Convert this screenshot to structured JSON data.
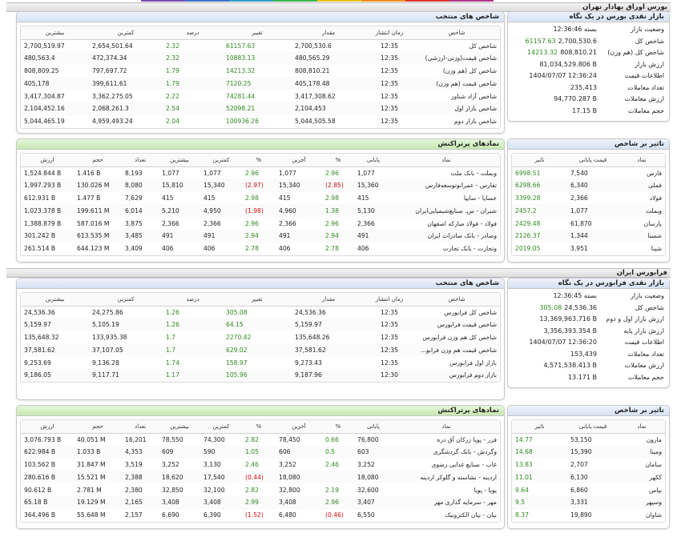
{
  "colors": {
    "positive": "#2e8b1e",
    "negative": "#cc1111",
    "head_blue": "#d6e2f3",
    "head_green": "#c6e8b0"
  },
  "tse": {
    "section_title": "بورس اوراق بهادار تهران",
    "summary": {
      "title": "بازار نقدی بورس در یک نگاه",
      "rows": [
        {
          "label": "وضعیت بازار",
          "value": "بسته 12:36:46",
          "change": ""
        },
        {
          "label": "شاخص کل",
          "value": "2,700,530.6",
          "change": "61157.63"
        },
        {
          "label": "شاخص کل (هم وزن)",
          "value": "808,810.21",
          "change": "14213.32"
        },
        {
          "label": "ارزش بازار",
          "value": "81,034,529.806 B",
          "change": ""
        },
        {
          "label": "اطلاعات قیمت",
          "value": "1404/07/07 12:36:24",
          "change": ""
        },
        {
          "label": "تعداد معاملات",
          "value": "235,413",
          "change": ""
        },
        {
          "label": "ارزش معاملات",
          "value": "94,770.287 B",
          "change": ""
        },
        {
          "label": "حجم معاملات",
          "value": "17.15 B",
          "change": ""
        }
      ]
    },
    "indices": {
      "title": "شاخص های منتخب",
      "headers": [
        "شاخص",
        "زمان انتشار",
        "مقدار",
        "تغییر",
        "درصد",
        "کمترین",
        "بیشترین"
      ],
      "rows": [
        [
          "شاخص کل",
          "12:35",
          "2,700,530.6",
          "61157.63",
          "2.32",
          "2,654,501.64",
          "2,700,519.97"
        ],
        [
          "شاخص قیمت(وزنی-ارزشی)",
          "12:35",
          "480,565.29",
          "10883.13",
          "2.32",
          "472,374.34",
          "480,563.4"
        ],
        [
          "شاخص کل (هم وزن)",
          "12:35",
          "808,810.21",
          "14213.32",
          "1.79",
          "797,697.72",
          "808,809.25"
        ],
        [
          "شاخص قیمت (هم وزن)",
          "12:35",
          "405,178.48",
          "7120.25",
          "1.79",
          "399,611.61",
          "405,178"
        ],
        [
          "شاخص آزاد شناور",
          "12:35",
          "3,417,308.62",
          "74281.44",
          "2.22",
          "3,362,275.05",
          "3,417,304.87"
        ],
        [
          "شاخص بازار اول",
          "12:35",
          "2,104,453",
          "52098.21",
          "2.54",
          "2,068,261.3",
          "2,104,452.16"
        ],
        [
          "شاخص بازار دوم",
          "12:35",
          "5,044,505.58",
          "100936.26",
          "2.04",
          "4,959,493.24",
          "5,044,465.19"
        ]
      ]
    },
    "impact": {
      "title": "تاثیر بر شاخص",
      "headers": [
        "نماد",
        "قیمت پایانی",
        "تاثیر"
      ],
      "rows": [
        [
          "فارس",
          "7,540",
          "6998.51"
        ],
        [
          "فملی",
          "6,340",
          "6298.66"
        ],
        [
          "فولاد",
          "2,366",
          "3399.28"
        ],
        [
          "وبملت",
          "1,077",
          "2457.2"
        ],
        [
          "پارسان",
          "61,870",
          "2429.48"
        ],
        [
          "شستا",
          "1,344",
          "2126.37"
        ],
        [
          "شپنا",
          "3,951",
          "2019.05"
        ]
      ]
    },
    "trades": {
      "title": "نمادهای پرتراکنش",
      "headers": [
        "نماد",
        "پایانی",
        "%",
        "آخرین",
        "%",
        "کمترین",
        "بیشترین",
        "تعداد",
        "حجم",
        "ارزش"
      ],
      "rows": [
        [
          "وبملت - بانک ملت",
          "1,077",
          "2.96",
          "1,077",
          "2.96",
          "1,077",
          "1,077",
          "8,193",
          "1.416 B",
          "1,524.844 B"
        ],
        [
          "تفارس - عمرانوتوسعه‌فارس",
          "15,360",
          "(2.85)",
          "15,340",
          "(2.97)",
          "15,340",
          "15,810",
          "8,080",
          "130.026 M",
          "1,997.293 B"
        ],
        [
          "خساپا - سایپا",
          "415",
          "2.98",
          "415",
          "2.98",
          "415",
          "415",
          "7,629",
          "1.477 B",
          "612.931 B"
        ],
        [
          "شبران - س. صنایع‌شیمیایی‌ایران",
          "5,130",
          "1.38",
          "4,960",
          "(1.98)",
          "4,950",
          "5,210",
          "6,014",
          "199.611 M",
          "1,023.378 B"
        ],
        [
          "فولاد - فولاد مبارکه اصفهان",
          "2,366",
          "2.96",
          "2,366",
          "2.96",
          "2,366",
          "2,366",
          "3,875",
          "587.016 M",
          "1,388.879 B"
        ],
        [
          "وصادر - بانک صادرات ایران",
          "491",
          "2.94",
          "491",
          "2.94",
          "491",
          "491",
          "3,485",
          "613.535 M",
          "301.242 B"
        ],
        [
          "وتجارت - بانک تجارت",
          "406",
          "2.78",
          "406",
          "2.78",
          "406",
          "406",
          "3,409",
          "644.123 M",
          "261.514 B"
        ]
      ]
    }
  },
  "ifb": {
    "section_title": "فرابورس ایران",
    "summary": {
      "title": "بازار نقدی فرابورس در یک نگاه",
      "rows": [
        {
          "label": "وضعیت بازار",
          "value": "بسته 12:36:45",
          "change": ""
        },
        {
          "label": "شاخص کل",
          "value": "24,536.36",
          "change": "305.08"
        },
        {
          "label": "ارزش بازار اول و دوم",
          "value": "13,369,963.716 B",
          "change": ""
        },
        {
          "label": "ارزش بازار پایه",
          "value": "3,356,393.354 B",
          "change": ""
        },
        {
          "label": "اطلاعات قیمت",
          "value": "1404/07/07 12:36:20",
          "change": ""
        },
        {
          "label": "تعداد معاملات",
          "value": "153,439",
          "change": ""
        },
        {
          "label": "ارزش معاملات",
          "value": "4,571,538.413 B",
          "change": ""
        },
        {
          "label": "حجم معاملات",
          "value": "13.171 B",
          "change": ""
        }
      ]
    },
    "indices": {
      "title": "شاخص های منتخب",
      "headers": [
        "شاخص",
        "زمان انتشار",
        "مقدار",
        "تغییر",
        "درصد",
        "کمترین",
        "بیشترین"
      ],
      "rows": [
        [
          "شاخص کل فرابورس",
          "12:35",
          "24,536.36",
          "305.08",
          "1.26",
          "24,275.86",
          "24,536.36"
        ],
        [
          "شاخص قیمت فرابورس",
          "12:35",
          "5,159.97",
          "64.15",
          "1.26",
          "5,105.19",
          "5,159.97"
        ],
        [
          "شاخص کل هم وزن فرابورس",
          "12:35",
          "135,648.26",
          "2270.42",
          "1.7",
          "133,935.38",
          "135,648.32"
        ],
        [
          "شاخص قیمت هم وزن فرابو...",
          "12:35",
          "37,581.62",
          "629.02",
          "1.7",
          "37,107.05",
          "37,581.62"
        ],
        [
          "بازار اول فرابورس",
          "12:35",
          "9,273.43",
          "158.97",
          "1.74",
          "9,136.28",
          "9,253.69"
        ],
        [
          "بازار دوم فرابورس",
          "12:30",
          "9,187.96",
          "105.96",
          "1.17",
          "9,117.71",
          "9,186.05"
        ]
      ]
    },
    "impact": {
      "title": "تاثیر بر شاخص",
      "headers": [
        "نماد",
        "قیمت پایانی",
        "تاثیر"
      ],
      "rows": [
        [
          "مارون",
          "53,150",
          "14.77"
        ],
        [
          "ومینا",
          "15,390",
          "14.68"
        ],
        [
          "سامان",
          "2,707",
          "13.83"
        ],
        [
          "ککهر",
          "6,130",
          "11.01"
        ],
        [
          "بپاس",
          "6,860",
          "9.64"
        ],
        [
          "وسپهر",
          "3,331",
          "9.5"
        ],
        [
          "شاوان",
          "19,890",
          "8.37"
        ]
      ]
    },
    "trades": {
      "title": "نمادهای پرتراکنش",
      "headers": [
        "نماد",
        "پایانی",
        "%",
        "آخرین",
        "%",
        "کمترین",
        "بیشترین",
        "تعداد",
        "حجم",
        "ارزش"
      ],
      "rows": [
        [
          "فزر - پویا زرکان آق دره",
          "76,800",
          "0.66",
          "78,450",
          "2.82",
          "74,300",
          "78,550",
          "16,201",
          "40.051 M",
          "3,076.793 B"
        ],
        [
          "وگردش - بانک گردشگری",
          "603",
          "0.5",
          "606",
          "1.05",
          "590",
          "609",
          "4,353",
          "1.033 B",
          "622.984 B"
        ],
        [
          "غاب - صنایع غذایی رضوی",
          "3,252",
          "2.46",
          "3,252",
          "2.46",
          "3,130",
          "3,252",
          "3,519",
          "31.847 M",
          "103.562 B"
        ],
        [
          "اردینه - نشاسته و گلوکز اردینه",
          "18,080",
          "",
          "18,080",
          "(0.44)",
          "17,540",
          "18,620",
          "2,388",
          "15.521 M",
          "280.616 B"
        ],
        [
          "پویا - پویا",
          "32,600",
          "2.19",
          "32,800",
          "2.82",
          "32,100",
          "32,850",
          "2,380",
          "2.781 M",
          "90.612 B"
        ],
        [
          "مهر - سرمایه گذاری مهر",
          "3,407",
          "2.96",
          "3,408",
          "2.99",
          "3,408",
          "3,408",
          "2,165",
          "19.129 M",
          "65.18 B"
        ],
        [
          "نیان - نیان الکترونیک",
          "6,550",
          "(0.46)",
          "6,480",
          "(1.52)",
          "6,390",
          "6,690",
          "2,157",
          "55.648 M",
          "364.496 B"
        ]
      ]
    }
  }
}
